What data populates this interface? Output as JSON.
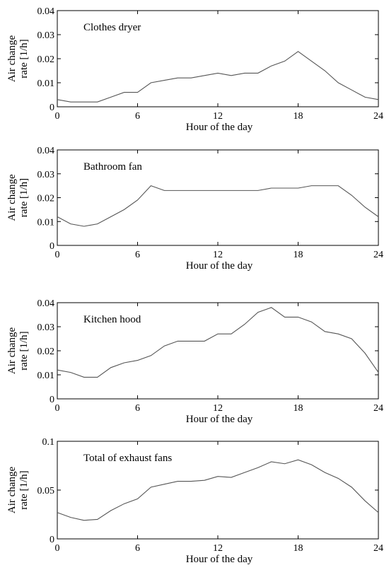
{
  "chart_data": [
    {
      "type": "line",
      "title": "Clothes dryer",
      "xlabel": "Hour of the day",
      "ylabel": [
        "Air change",
        "rate [1/h]"
      ],
      "xlim": [
        0,
        24
      ],
      "ylim": [
        0,
        0.04
      ],
      "xticks": [
        "0",
        "6",
        "12",
        "18",
        "24"
      ],
      "yticks": [
        "0",
        "0.01",
        "0.02",
        "0.03",
        "0.04"
      ],
      "x": [
        0,
        1,
        2,
        3,
        4,
        5,
        6,
        7,
        8,
        9,
        10,
        11,
        12,
        13,
        14,
        15,
        16,
        17,
        18,
        19,
        20,
        21,
        22,
        23,
        24
      ],
      "series": [
        {
          "values": [
            0.003,
            0.002,
            0.002,
            0.002,
            0.004,
            0.006,
            0.006,
            0.01,
            0.011,
            0.012,
            0.012,
            0.013,
            0.014,
            0.013,
            0.014,
            0.014,
            0.017,
            0.019,
            0.023,
            0.019,
            0.015,
            0.01,
            0.007,
            0.004,
            0.003
          ]
        }
      ]
    },
    {
      "type": "line",
      "title": "Bathroom fan",
      "xlabel": "Hour of the day",
      "ylabel": [
        "Air change",
        "rate [1/h]"
      ],
      "xlim": [
        0,
        24
      ],
      "ylim": [
        0,
        0.04
      ],
      "xticks": [
        "0",
        "6",
        "12",
        "18",
        "24"
      ],
      "yticks": [
        "0",
        "0.01",
        "0.02",
        "0.03",
        "0.04"
      ],
      "x": [
        0,
        1,
        2,
        3,
        4,
        5,
        6,
        7,
        8,
        9,
        10,
        11,
        12,
        13,
        14,
        15,
        16,
        17,
        18,
        19,
        20,
        21,
        22,
        23,
        24
      ],
      "series": [
        {
          "values": [
            0.012,
            0.009,
            0.008,
            0.009,
            0.012,
            0.015,
            0.019,
            0.025,
            0.023,
            0.023,
            0.023,
            0.023,
            0.023,
            0.023,
            0.023,
            0.023,
            0.024,
            0.024,
            0.024,
            0.025,
            0.025,
            0.025,
            0.021,
            0.016,
            0.012
          ]
        }
      ]
    },
    {
      "type": "line",
      "title": "Kitchen hood",
      "xlabel": "Hour of the day",
      "ylabel": [
        "Air change",
        "rate [1/h]"
      ],
      "xlim": [
        0,
        24
      ],
      "ylim": [
        0,
        0.04
      ],
      "xticks": [
        "0",
        "6",
        "12",
        "18",
        "24"
      ],
      "yticks": [
        "0",
        "0.01",
        "0.02",
        "0.03",
        "0.04"
      ],
      "x": [
        0,
        1,
        2,
        3,
        4,
        5,
        6,
        7,
        8,
        9,
        10,
        11,
        12,
        13,
        14,
        15,
        16,
        17,
        18,
        19,
        20,
        21,
        22,
        23,
        24
      ],
      "series": [
        {
          "values": [
            0.012,
            0.011,
            0.009,
            0.009,
            0.013,
            0.015,
            0.016,
            0.018,
            0.022,
            0.024,
            0.024,
            0.024,
            0.027,
            0.027,
            0.031,
            0.036,
            0.038,
            0.034,
            0.034,
            0.032,
            0.028,
            0.027,
            0.025,
            0.019,
            0.011
          ]
        }
      ]
    },
    {
      "type": "line",
      "title": "Total of exhaust fans",
      "xlabel": "Hour of the day",
      "ylabel": [
        "Air change",
        "rate [1/h]"
      ],
      "xlim": [
        0,
        24
      ],
      "ylim": [
        0,
        0.1
      ],
      "xticks": [
        "0",
        "6",
        "12",
        "18",
        "24"
      ],
      "yticks": [
        "0",
        "0.05",
        "0.1"
      ],
      "ytick_values": [
        0,
        0.05,
        0.1
      ],
      "x": [
        0,
        1,
        2,
        3,
        4,
        5,
        6,
        7,
        8,
        9,
        10,
        11,
        12,
        13,
        14,
        15,
        16,
        17,
        18,
        19,
        20,
        21,
        22,
        23,
        24
      ],
      "series": [
        {
          "values": [
            0.027,
            0.022,
            0.019,
            0.02,
            0.029,
            0.036,
            0.041,
            0.053,
            0.056,
            0.059,
            0.059,
            0.06,
            0.064,
            0.063,
            0.068,
            0.073,
            0.079,
            0.077,
            0.081,
            0.076,
            0.068,
            0.062,
            0.053,
            0.039,
            0.027
          ]
        }
      ]
    }
  ],
  "colors": {
    "line": "#555555",
    "axis": "#000000",
    "background": "#ffffff"
  }
}
